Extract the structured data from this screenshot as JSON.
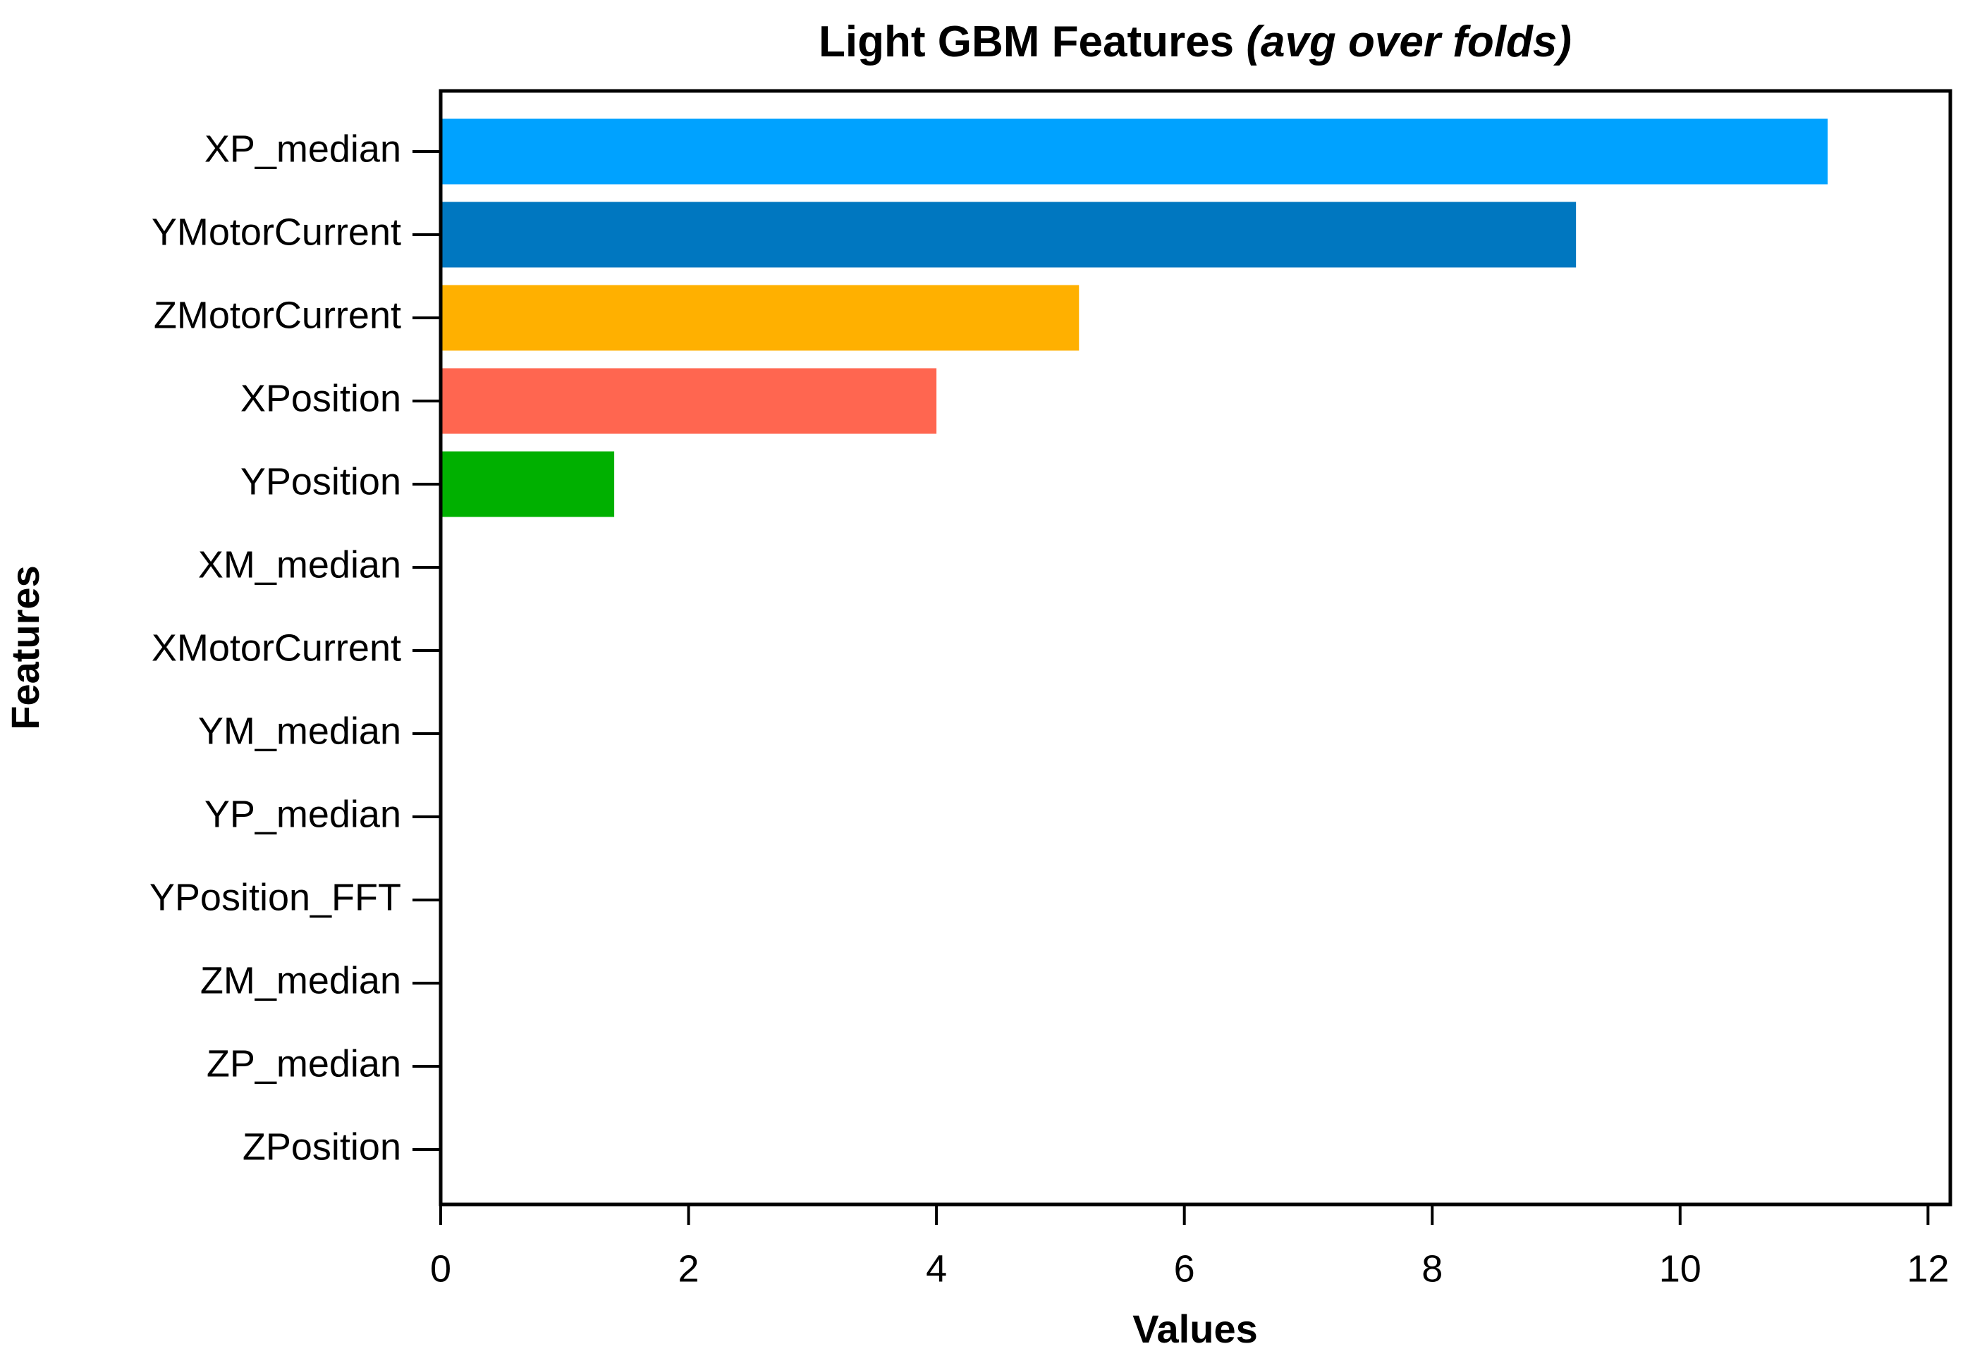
{
  "chart_data": {
    "type": "barh",
    "title": "Light GBM Features",
    "title_italic": "(avg over folds)",
    "x_label": "Values",
    "y_label": "Features",
    "categories": [
      "XP_median",
      "YMotorCurrent",
      "ZMotorCurrent",
      "XPosition",
      "YPosition",
      "XM_median",
      "XMotorCurrent",
      "YM_median",
      "YP_median",
      "YPosition_FFT",
      "ZM_median",
      "ZP_median",
      "ZPosition"
    ],
    "values": [
      11.19,
      9.16,
      5.15,
      4.0,
      1.4,
      0,
      0,
      0,
      0,
      0,
      0,
      0,
      0
    ],
    "colors": [
      "#00a2ff",
      "#0077c0",
      "#ffb000",
      "#ff6650",
      "#00b000"
    ],
    "xlim": [
      0,
      12.18
    ],
    "xticks": [
      0,
      2,
      4,
      6,
      8,
      10,
      12
    ]
  }
}
